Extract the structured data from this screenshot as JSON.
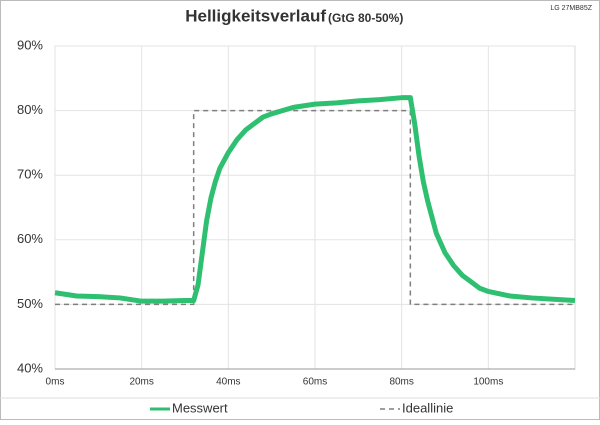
{
  "chart_data": {
    "type": "line",
    "title": "Helligkeitsverlauf",
    "subtitle": "(GtG 80-50%)",
    "annotation": "LG 27MB85Z",
    "series": [
      {
        "name": "Messwert",
        "color": "#2fbf71",
        "style": "solid",
        "x": [
          0,
          5,
          10,
          15,
          20,
          25,
          30,
          32,
          33,
          34,
          35,
          36,
          37,
          38,
          40,
          42,
          44,
          46,
          48,
          50,
          55,
          60,
          65,
          70,
          75,
          80,
          82,
          83,
          84,
          85,
          86,
          88,
          90,
          92,
          94,
          96,
          98,
          100,
          105,
          110,
          115,
          120
        ],
        "values": [
          51.8,
          51.3,
          51.2,
          51,
          50.5,
          50.5,
          50.6,
          50.6,
          53,
          58,
          63,
          66.5,
          69,
          71,
          73.5,
          75.5,
          77,
          78,
          79,
          79.5,
          80.5,
          81,
          81.2,
          81.5,
          81.7,
          82,
          82,
          78,
          73,
          69,
          66,
          61,
          58,
          56,
          54.5,
          53.5,
          52.5,
          52,
          51.3,
          51,
          50.8,
          50.6
        ]
      },
      {
        "name": "Ideallinie",
        "color": "#7f7f7f",
        "style": "dashed",
        "x": [
          0,
          32,
          32,
          82,
          82,
          120
        ],
        "values": [
          50,
          50,
          80,
          80,
          50,
          50
        ]
      }
    ],
    "xlim": [
      0,
      120
    ],
    "xticks": [
      {
        "value": 0,
        "label": "0ms"
      },
      {
        "value": 20,
        "label": "20ms"
      },
      {
        "value": 40,
        "label": "40ms"
      },
      {
        "value": 60,
        "label": "60ms"
      },
      {
        "value": 80,
        "label": "80ms"
      },
      {
        "value": 100,
        "label": "100ms"
      }
    ],
    "ylim": [
      40,
      90
    ],
    "yticks": [
      {
        "value": 40,
        "label": "40%"
      },
      {
        "value": 50,
        "label": "50%"
      },
      {
        "value": 60,
        "label": "60%"
      },
      {
        "value": 70,
        "label": "70%"
      },
      {
        "value": 80,
        "label": "80%"
      },
      {
        "value": 90,
        "label": "90%"
      }
    ],
    "grid": true
  }
}
